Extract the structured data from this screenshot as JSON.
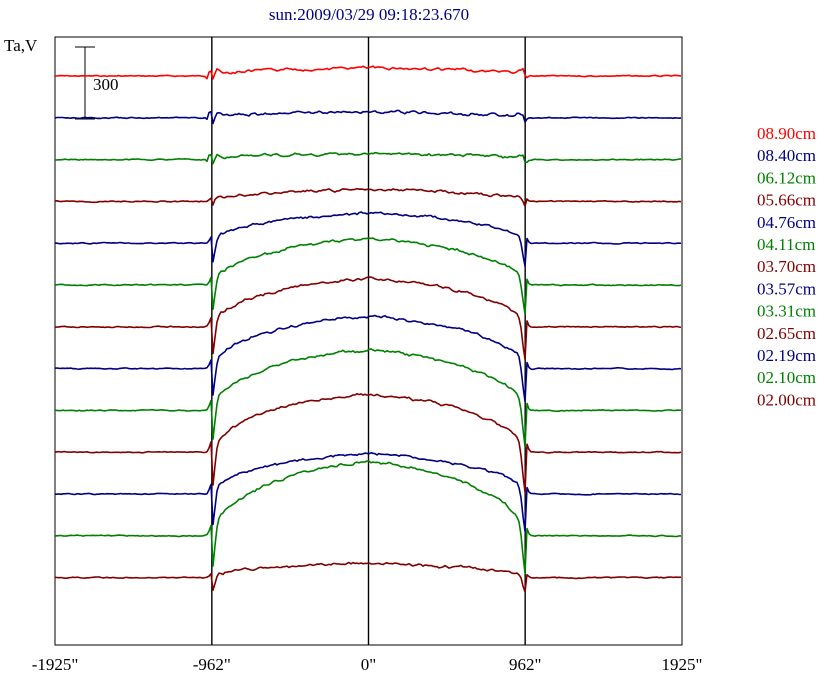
{
  "chart_data": {
    "type": "line",
    "title": "sun:2009/03/29 09:18:23.670",
    "ylabel": "Ta,V",
    "scale_bar_label": "300",
    "x_ticks": [
      {
        "value": -1925,
        "label": "-1925\""
      },
      {
        "value": -962,
        "label": "-962\""
      },
      {
        "value": 0,
        "label": "0\""
      },
      {
        "value": 962,
        "label": "962\""
      },
      {
        "value": 1925,
        "label": "1925\""
      }
    ],
    "xlim": [
      -1925,
      1925
    ],
    "vlines": [
      -962,
      0,
      962
    ],
    "series": [
      {
        "name": "08.90cm",
        "color": "#ff0000",
        "amp": 8,
        "limb": 14,
        "edge": 14
      },
      {
        "name": "08.40cm",
        "color": "#000080",
        "amp": 6,
        "limb": 12,
        "edge": 16
      },
      {
        "name": "06.12cm",
        "color": "#008000",
        "amp": 6,
        "limb": 10,
        "edge": 12
      },
      {
        "name": "05.66cm",
        "color": "#800000",
        "amp": 12,
        "limb": 8,
        "edge": 14
      },
      {
        "name": "04.76cm",
        "color": "#000080",
        "amp": 30,
        "limb": 4,
        "edge": 28
      },
      {
        "name": "04.11cm",
        "color": "#008000",
        "amp": 46,
        "limb": 4,
        "edge": 34
      },
      {
        "name": "03.70cm",
        "color": "#800000",
        "amp": 48,
        "limb": 4,
        "edge": 38
      },
      {
        "name": "03.57cm",
        "color": "#000080",
        "amp": 52,
        "limb": 4,
        "edge": 38
      },
      {
        "name": "03.31cm",
        "color": "#008000",
        "amp": 60,
        "limb": 4,
        "edge": 42
      },
      {
        "name": "02.65cm",
        "color": "#800000",
        "amp": 58,
        "limb": 4,
        "edge": 46
      },
      {
        "name": "02.19cm",
        "color": "#000080",
        "amp": 40,
        "limb": 4,
        "edge": 42
      },
      {
        "name": "02.10cm",
        "color": "#008000",
        "amp": 74,
        "limb": 4,
        "edge": 44
      },
      {
        "name": "02.00cm",
        "color": "#800000",
        "amp": 14,
        "limb": 4,
        "edge": 18
      }
    ],
    "grid": false,
    "legend_position": "right"
  }
}
